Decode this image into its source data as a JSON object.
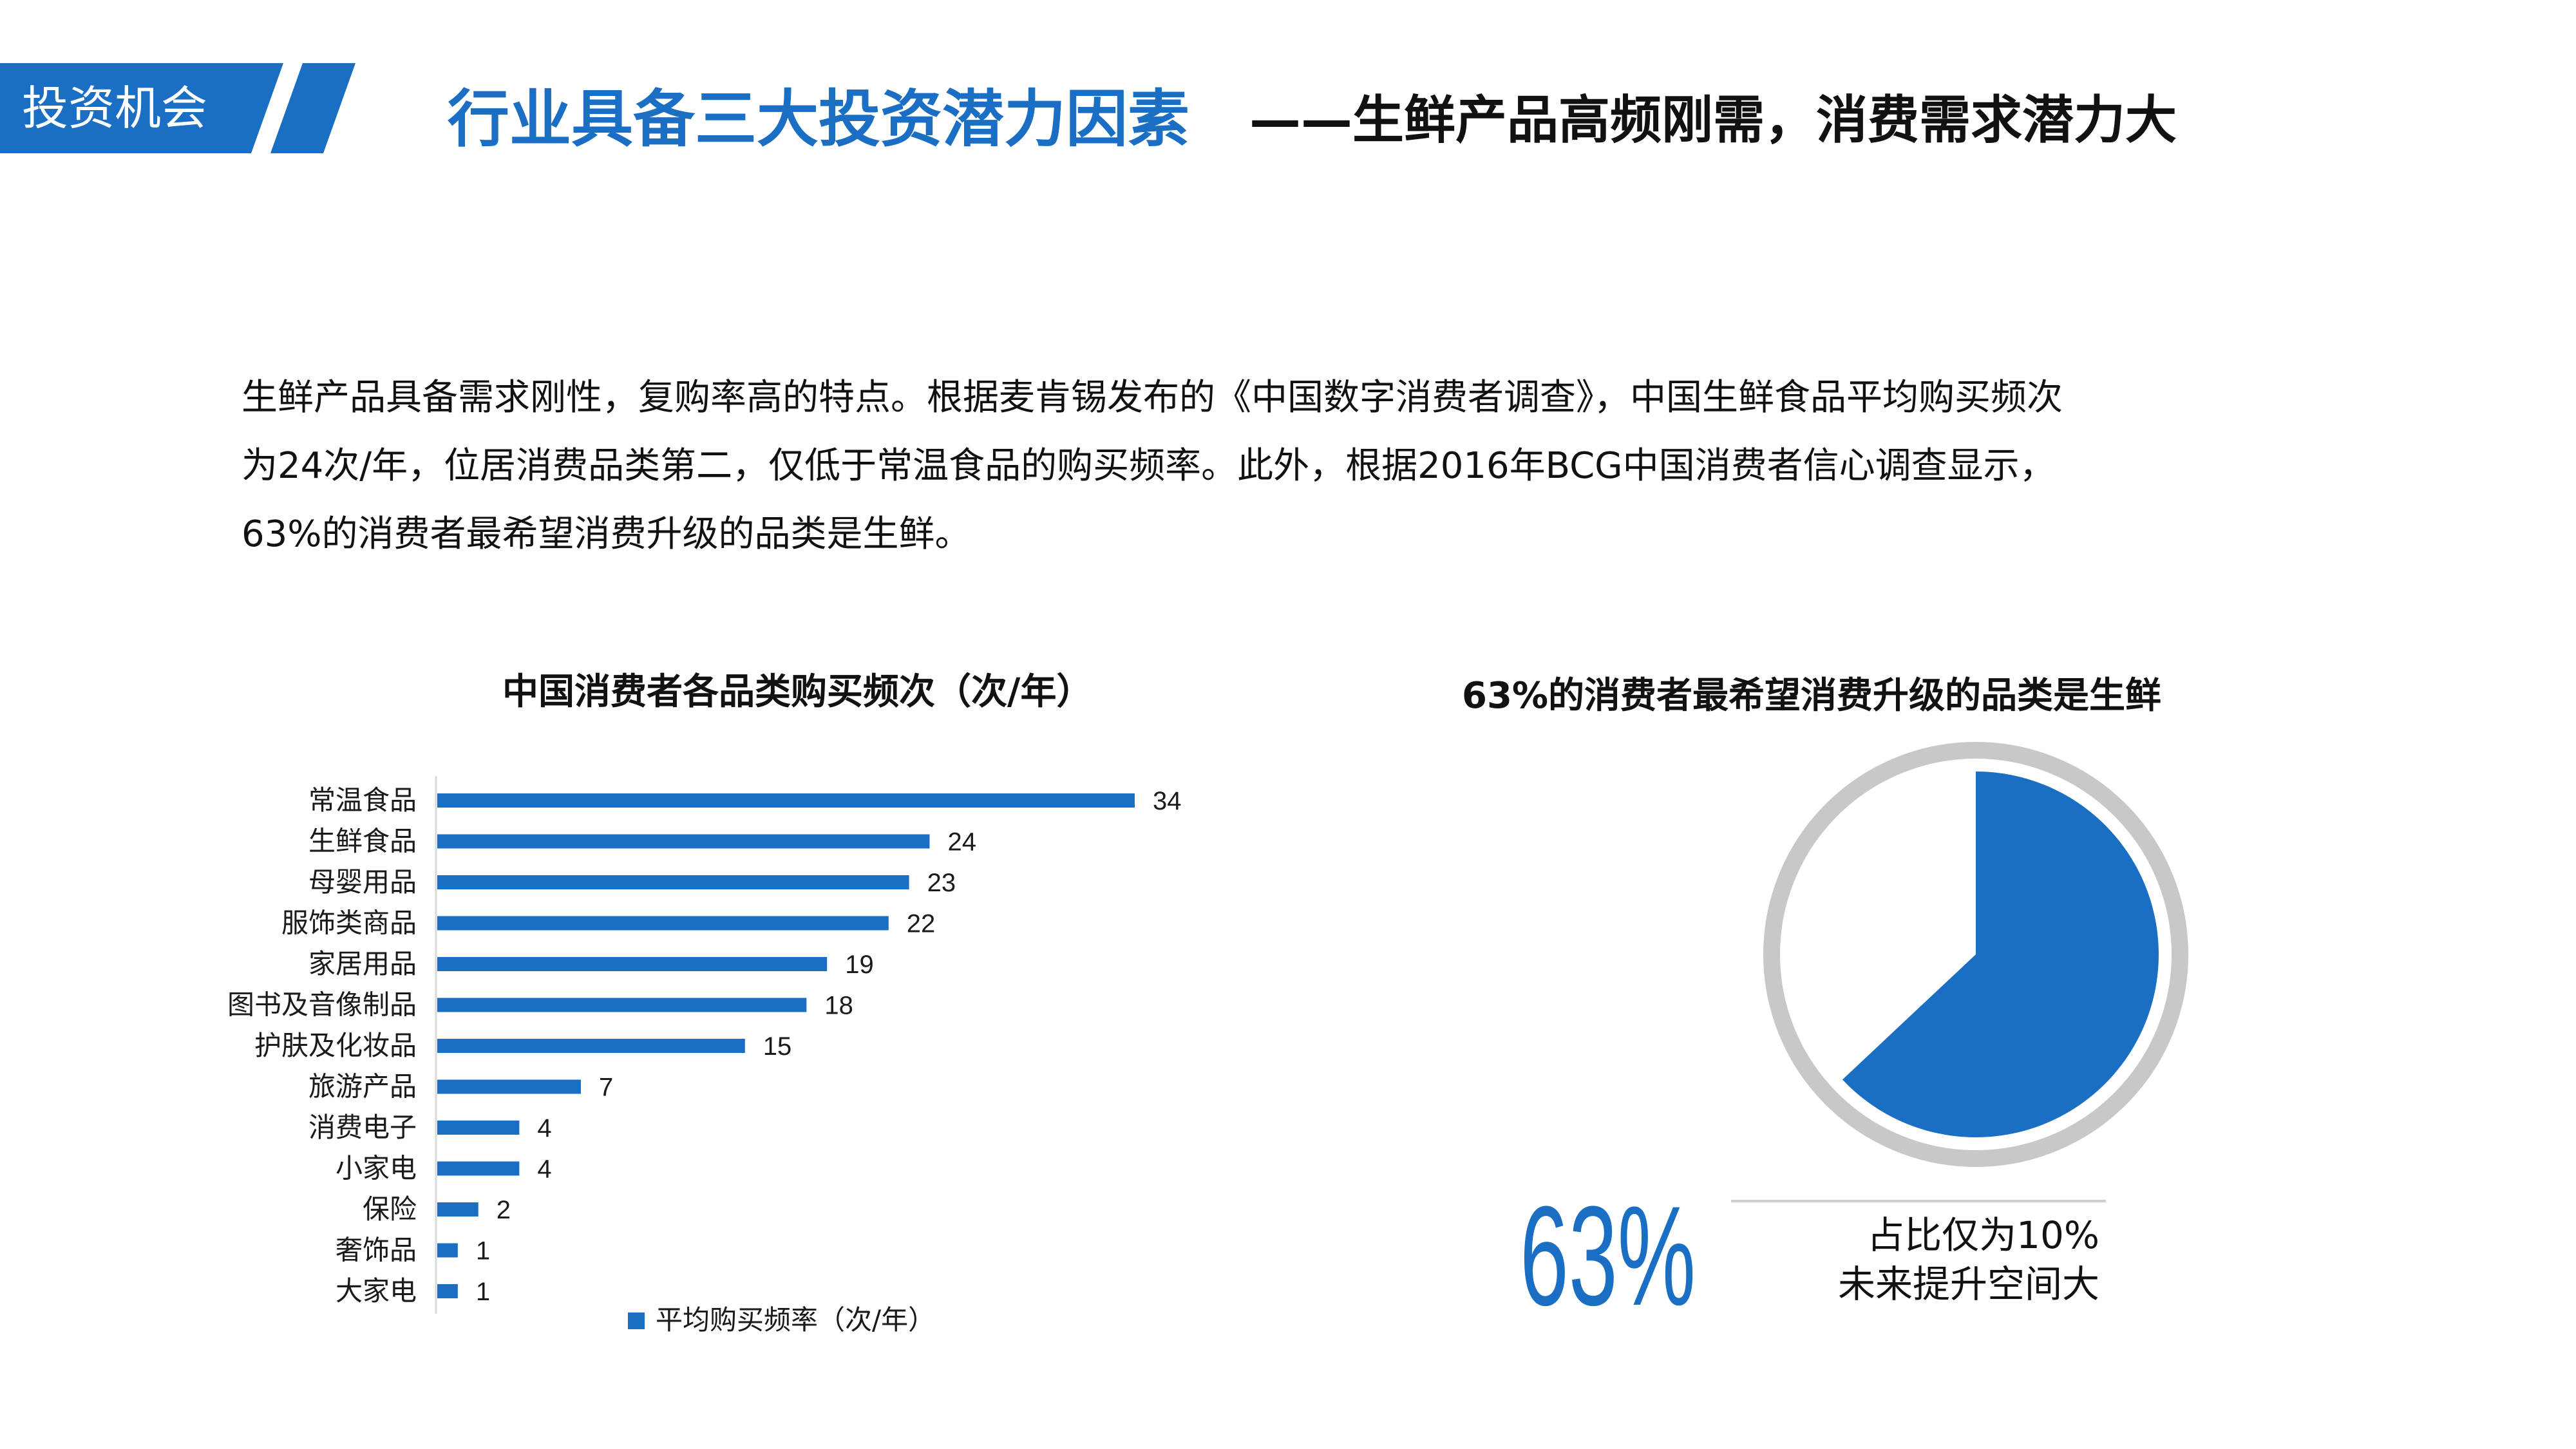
{
  "header": {
    "section_tag": "投资机会",
    "title": "行业具备三大投资潜力因素",
    "subtitle": "——生鲜产品高频刚需，消费需求潜力大"
  },
  "paragraph": {
    "line1": "生鲜产品具备需求刚性，复购率高的特点。根据麦肯锡发布的《中国数字消费者调查》，中国生鲜食品平均购买频次",
    "line2": "为24次/年，位居消费品类第二，仅低于常温食品的购买频率。此外，根据2016年BCG中国消费者信心调查显示，",
    "line3": "63%的消费者最希望消费升级的品类是生鲜。"
  },
  "colors": {
    "accent": "#1a6fc4",
    "ring": "#c8c8c8",
    "remainder": "#ffffff"
  },
  "chart_data": [
    {
      "type": "bar",
      "orientation": "horizontal",
      "title": "中国消费者各品类购买频次（次/年）",
      "categories": [
        "常温食品",
        "生鲜食品",
        "母婴用品",
        "服饰类商品",
        "家居用品",
        "图书及音像制品",
        "护肤及化妆品",
        "旅游产品",
        "消费电子",
        "小家电",
        "保险",
        "奢饰品",
        "大家电"
      ],
      "series": [
        {
          "name": "平均购买频率（次/年）",
          "values": [
            34,
            24,
            23,
            22,
            19,
            18,
            15,
            7,
            4,
            4,
            2,
            1,
            1
          ]
        }
      ],
      "legend": "bottom",
      "grid": false
    },
    {
      "type": "pie",
      "title": "63%的消费者最希望消费升级的品类是生鲜",
      "slices": [
        {
          "label": "生鲜",
          "value": 63
        },
        {
          "label": "",
          "value": 37
        }
      ],
      "center_label": "63%",
      "annotation": [
        "占比仅为10%",
        "未来提升空间大"
      ]
    }
  ]
}
